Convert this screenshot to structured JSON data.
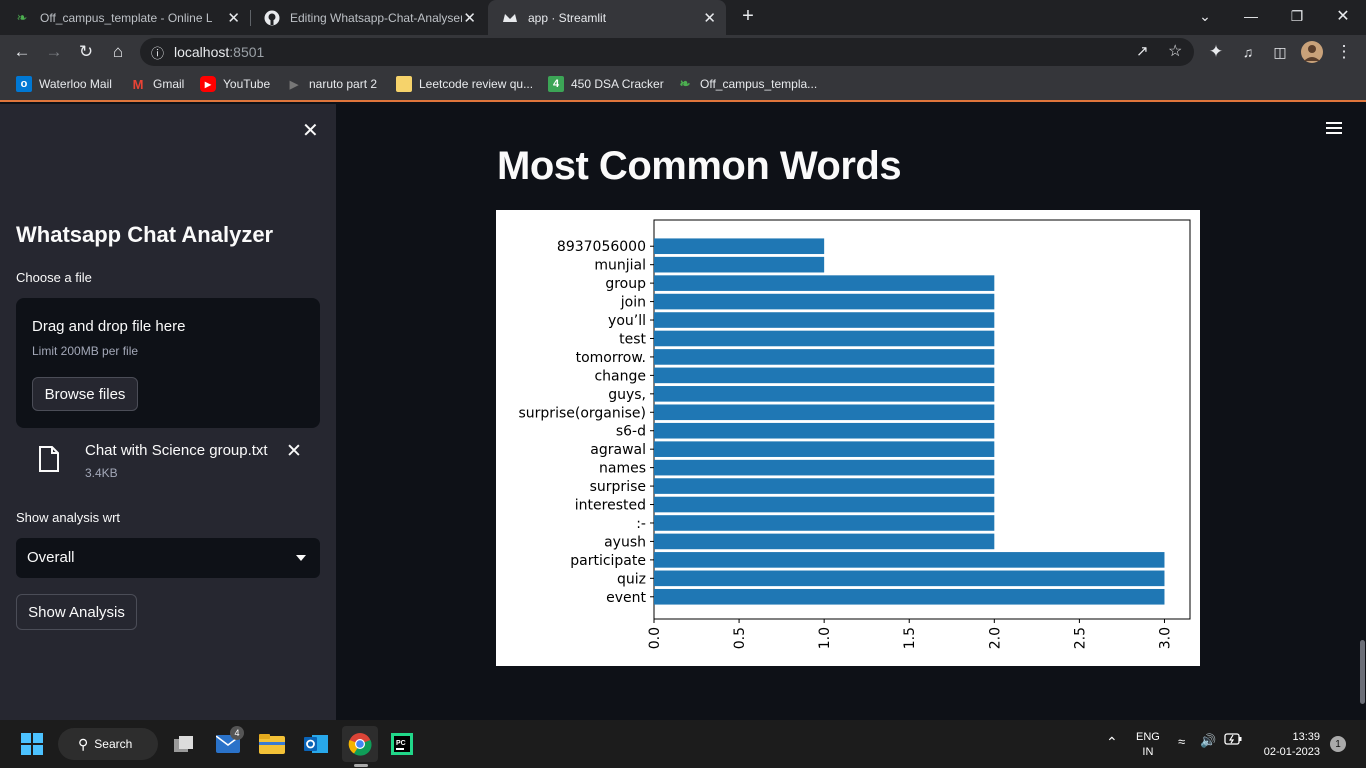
{
  "browser": {
    "tabs": [
      {
        "title": "Off_campus_template - Online La",
        "icon": "leaf-icon",
        "active": false
      },
      {
        "title": "Editing Whatsapp-Chat-Analyser",
        "icon": "github-icon",
        "active": false
      },
      {
        "title": "app · Streamlit",
        "icon": "streamlit-crown-icon",
        "active": true
      }
    ],
    "new_tab": "+",
    "url_host": "localhost",
    "url_port": ":8501",
    "bookmarks": [
      {
        "label": "Waterloo Mail",
        "icon": "outlook-icon",
        "color": "#0078d4"
      },
      {
        "label": "Gmail",
        "icon": "gmail-icon",
        "color": "#ea4335"
      },
      {
        "label": "YouTube",
        "icon": "youtube-icon",
        "color": "#ff0000"
      },
      {
        "label": "naruto part 2",
        "icon": "play-icon",
        "color": "#777777"
      },
      {
        "label": "Leetcode review qu...",
        "icon": "note-icon",
        "color": "#f6d36b"
      },
      {
        "label": "450 DSA Cracker",
        "icon": "four-icon",
        "color": "#3ca556"
      },
      {
        "label": "Off_campus_templa...",
        "icon": "leaf-icon",
        "color": "#4caf50"
      }
    ]
  },
  "sidebar": {
    "title": "Whatsapp Chat Analyzer",
    "file_label": "Choose a file",
    "dropzone_title": "Drag and drop file here",
    "dropzone_limit": "Limit 200MB per file",
    "browse_label": "Browse files",
    "file_name": "Chat with Science group.txt",
    "file_size": "3.4KB",
    "analysis_label": "Show analysis wrt",
    "select_value": "Overall",
    "show_button": "Show Analysis"
  },
  "main": {
    "title": "Most Common Words"
  },
  "chart_data": {
    "type": "bar",
    "orientation": "horizontal",
    "categories": [
      "8937056000",
      "munjial",
      "group",
      "join",
      "you’ll",
      "test",
      "tomorrow.",
      "change",
      "guys,",
      "surprise(organise)",
      "s6-d",
      "agrawal",
      "names",
      "surprise",
      "interested",
      ":-",
      "ayush",
      "participate",
      "quiz",
      "event"
    ],
    "values": [
      1,
      1,
      2,
      2,
      2,
      2,
      2,
      2,
      2,
      2,
      2,
      2,
      2,
      2,
      2,
      2,
      2,
      3,
      3,
      3
    ],
    "xticks": [
      "0.0",
      "0.5",
      "1.0",
      "1.5",
      "2.0",
      "2.5",
      "3.0"
    ],
    "xlim": [
      0,
      3.15
    ],
    "bar_color": "#1f77b4",
    "title": "",
    "xlabel": "",
    "ylabel": ""
  },
  "taskbar": {
    "search_label": "Search",
    "mail_badge": "4",
    "lang_top": "ENG",
    "lang_bottom": "IN",
    "time": "13:39",
    "date": "02-01-2023",
    "notification_count": "1"
  }
}
